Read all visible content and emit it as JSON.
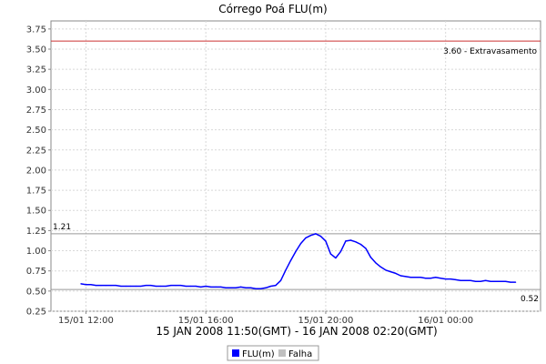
{
  "chart_data": {
    "type": "line",
    "title": "Córrego Poá FLU(m)",
    "xlabel": "15 JAN 2008 11:50(GMT) - 16 JAN 2008 02:20(GMT)",
    "ylabel": "",
    "ylim": [
      0.25,
      3.85
    ],
    "xlim": [
      "2008-01-15 10:50",
      "2008-01-16 03:10"
    ],
    "grid": true,
    "legend": "bottom",
    "yticks": [
      "0.25",
      "0.50",
      "0.75",
      "1.00",
      "1.25",
      "1.50",
      "1.75",
      "2.00",
      "2.25",
      "2.50",
      "2.75",
      "3.00",
      "3.25",
      "3.50",
      "3.75"
    ],
    "xticks": [
      {
        "t": "2008-01-15 12:00",
        "label": "15/01 12:00"
      },
      {
        "t": "2008-01-15 16:00",
        "label": "15/01 16:00"
      },
      {
        "t": "2008-01-15 20:00",
        "label": "15/01 20:00"
      },
      {
        "t": "2008-01-16 00:00",
        "label": "16/01 00:00"
      }
    ],
    "series": [
      {
        "name": "FLU(m)",
        "color": "#0000ff",
        "x": [
          "2008-01-15 11:50",
          "2008-01-15 12:00",
          "2008-01-15 12:10",
          "2008-01-15 12:20",
          "2008-01-15 12:30",
          "2008-01-15 12:40",
          "2008-01-15 12:50",
          "2008-01-15 13:00",
          "2008-01-15 13:10",
          "2008-01-15 13:20",
          "2008-01-15 13:30",
          "2008-01-15 13:40",
          "2008-01-15 13:50",
          "2008-01-15 14:00",
          "2008-01-15 14:10",
          "2008-01-15 14:20",
          "2008-01-15 14:30",
          "2008-01-15 14:40",
          "2008-01-15 14:50",
          "2008-01-15 15:00",
          "2008-01-15 15:10",
          "2008-01-15 15:20",
          "2008-01-15 15:30",
          "2008-01-15 15:40",
          "2008-01-15 15:50",
          "2008-01-15 16:00",
          "2008-01-15 16:10",
          "2008-01-15 16:20",
          "2008-01-15 16:30",
          "2008-01-15 16:40",
          "2008-01-15 16:50",
          "2008-01-15 17:00",
          "2008-01-15 17:10",
          "2008-01-15 17:20",
          "2008-01-15 17:30",
          "2008-01-15 17:40",
          "2008-01-15 17:50",
          "2008-01-15 18:00",
          "2008-01-15 18:10",
          "2008-01-15 18:20",
          "2008-01-15 18:30",
          "2008-01-15 18:40",
          "2008-01-15 18:50",
          "2008-01-15 19:00",
          "2008-01-15 19:10",
          "2008-01-15 19:20",
          "2008-01-15 19:30",
          "2008-01-15 19:40",
          "2008-01-15 19:50",
          "2008-01-15 20:00",
          "2008-01-15 20:10",
          "2008-01-15 20:20",
          "2008-01-15 20:30",
          "2008-01-15 20:40",
          "2008-01-15 20:50",
          "2008-01-15 21:00",
          "2008-01-15 21:10",
          "2008-01-15 21:20",
          "2008-01-15 21:30",
          "2008-01-15 21:40",
          "2008-01-15 21:50",
          "2008-01-15 22:00",
          "2008-01-15 22:10",
          "2008-01-15 22:20",
          "2008-01-15 22:30",
          "2008-01-15 22:40",
          "2008-01-15 22:50",
          "2008-01-15 23:00",
          "2008-01-15 23:10",
          "2008-01-15 23:20",
          "2008-01-15 23:30",
          "2008-01-15 23:40",
          "2008-01-15 23:50",
          "2008-01-16 00:00",
          "2008-01-16 00:10",
          "2008-01-16 00:20",
          "2008-01-16 00:30",
          "2008-01-16 00:40",
          "2008-01-16 00:50",
          "2008-01-16 01:00",
          "2008-01-16 01:10",
          "2008-01-16 01:20",
          "2008-01-16 01:30",
          "2008-01-16 01:40",
          "2008-01-16 01:50",
          "2008-01-16 02:00",
          "2008-01-16 02:10",
          "2008-01-16 02:20"
        ],
        "values": [
          0.59,
          0.58,
          0.58,
          0.57,
          0.57,
          0.57,
          0.57,
          0.57,
          0.56,
          0.56,
          0.56,
          0.56,
          0.56,
          0.57,
          0.57,
          0.56,
          0.56,
          0.56,
          0.57,
          0.57,
          0.57,
          0.56,
          0.56,
          0.56,
          0.55,
          0.56,
          0.55,
          0.55,
          0.55,
          0.54,
          0.54,
          0.54,
          0.55,
          0.54,
          0.54,
          0.53,
          0.53,
          0.54,
          0.56,
          0.57,
          0.63,
          0.76,
          0.88,
          0.99,
          1.09,
          1.16,
          1.19,
          1.21,
          1.18,
          1.12,
          0.96,
          0.91,
          0.99,
          1.12,
          1.13,
          1.11,
          1.08,
          1.03,
          0.92,
          0.85,
          0.8,
          0.76,
          0.74,
          0.72,
          0.69,
          0.68,
          0.67,
          0.67,
          0.67,
          0.66,
          0.66,
          0.67,
          0.66,
          0.65,
          0.65,
          0.64,
          0.63,
          0.63,
          0.63,
          0.62,
          0.62,
          0.63,
          0.62,
          0.62,
          0.62,
          0.62,
          0.61,
          0.61
        ]
      },
      {
        "name": "Falha",
        "color": "#c0c0c0",
        "x": [],
        "values": []
      }
    ],
    "reference_lines": [
      {
        "value": 3.6,
        "label": "3.60 - Extravasamento",
        "color": "#cc3333"
      },
      {
        "value": 1.21,
        "label": "1.21",
        "color": "#999999"
      },
      {
        "value": 0.52,
        "label": "0.52",
        "color": "#999999"
      }
    ]
  }
}
